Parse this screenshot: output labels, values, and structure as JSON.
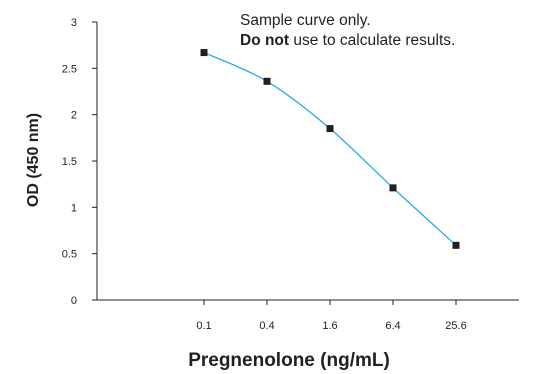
{
  "chart_data": {
    "type": "line",
    "xlabel": "Pregnenolone (ng/mL)",
    "ylabel": "OD (450 nm)",
    "x_scale": "log",
    "x_ticks": [
      "0.1",
      "0.4",
      "1.6",
      "6.4",
      "25.6"
    ],
    "y_ticks": [
      "0",
      "0.5",
      "1",
      "1.5",
      "2",
      "2.5",
      "3"
    ],
    "ylim": [
      0,
      3
    ],
    "grid": false,
    "series": [
      {
        "x": [
          0.1,
          0.4,
          1.6,
          6.4,
          25.6
        ],
        "y": [
          2.67,
          2.36,
          1.85,
          1.21,
          0.59
        ],
        "line_color": "#29abe2",
        "marker_color": "#231f20"
      }
    ],
    "annotation": {
      "line1": "Sample curve only.",
      "line2_bold": "Do not",
      "line2_rest": " use to calculate results."
    }
  }
}
